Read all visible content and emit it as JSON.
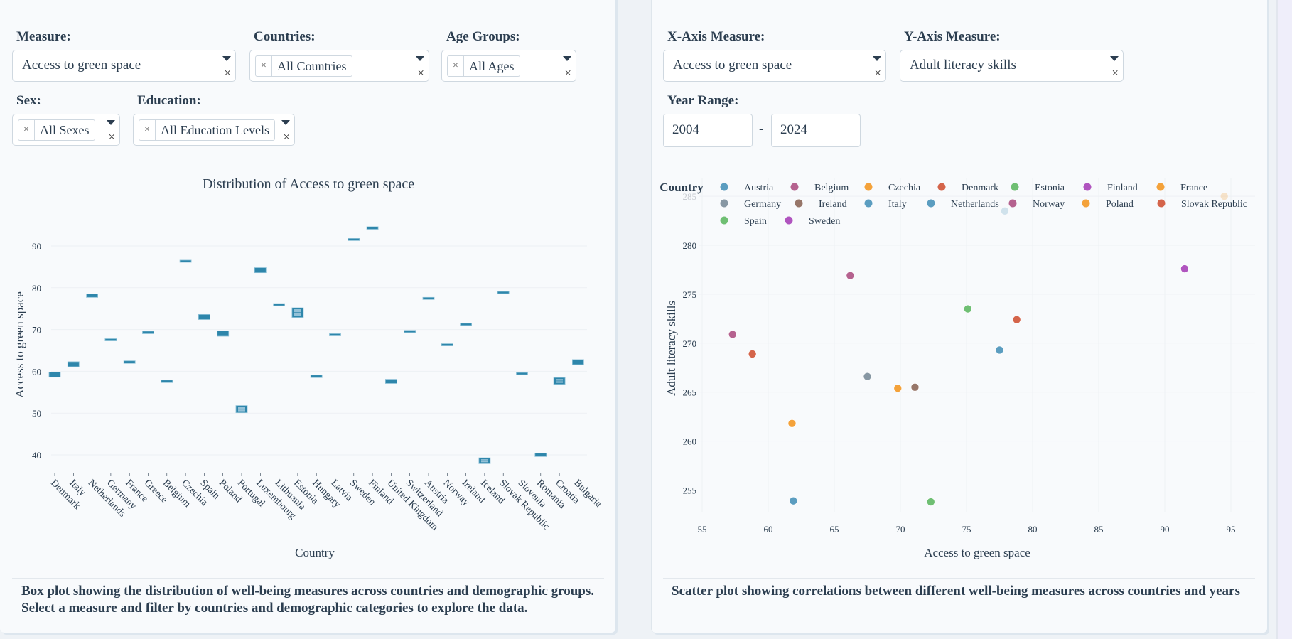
{
  "left": {
    "filters": {
      "measure": {
        "label": "Measure:",
        "value": "Access to green space"
      },
      "countries": {
        "label": "Countries:",
        "chip": "All Countries"
      },
      "age_groups": {
        "label": "Age Groups:",
        "chip": "All Ages"
      },
      "sex": {
        "label": "Sex:",
        "chip": "All Sexes"
      },
      "education": {
        "label": "Education:",
        "chip": "All Education Levels"
      }
    },
    "caption": "Box plot showing the distribution of well-being measures across countries and demographic groups. Select a measure and filter by countries and demographic categories to explore the data."
  },
  "right": {
    "filters": {
      "x_measure": {
        "label": "X-Axis Measure:",
        "value": "Access to green space"
      },
      "y_measure": {
        "label": "Y-Axis Measure:",
        "value": "Adult literacy skills"
      },
      "year_range": {
        "label": "Year Range:",
        "from": "2004",
        "to": "2024",
        "separator": "-"
      }
    },
    "caption": "Scatter plot showing correlations between different well-being measures across countries and years"
  },
  "icons": {
    "clear": "×",
    "chip_remove": "×"
  },
  "chart_data": [
    {
      "type": "box",
      "title": "Distribution of Access to green space",
      "xlabel": "Country",
      "ylabel": "Access to green space",
      "ylim": [
        34,
        97
      ],
      "yticks": [
        40,
        50,
        60,
        70,
        80,
        90
      ],
      "color": "#2e86ab",
      "categories": [
        "Denmark",
        "Italy",
        "Netherlands",
        "Germany",
        "France",
        "Greece",
        "Belgium",
        "Czechia",
        "Spain",
        "Poland",
        "Portugal",
        "Luxembourg",
        "Lithuania",
        "Estonia",
        "Hungary",
        "Latvia",
        "Sweden",
        "Finland",
        "United Kingdom",
        "Switzerland",
        "Austria",
        "Norway",
        "Ireland",
        "Iceland",
        "Slovak Republic",
        "Slovenia",
        "Romania",
        "Croatia",
        "Bulgaria"
      ],
      "boxes": [
        {
          "low": 58.6,
          "mid": 59.2,
          "high": 59.8
        },
        {
          "low": 61.1,
          "mid": 61.7,
          "high": 62.3
        },
        {
          "low": 77.7,
          "mid": 78.1,
          "high": 78.5
        },
        {
          "low": 67.4,
          "mid": 67.6,
          "high": 67.8
        },
        {
          "low": 61.9,
          "mid": 62.2,
          "high": 62.5
        },
        {
          "low": 69.0,
          "mid": 69.3,
          "high": 69.6
        },
        {
          "low": 57.3,
          "mid": 57.6,
          "high": 57.9
        },
        {
          "low": 86.2,
          "mid": 86.4,
          "high": 86.6
        },
        {
          "low": 72.4,
          "mid": 73.0,
          "high": 73.6
        },
        {
          "low": 68.4,
          "mid": 69.0,
          "high": 69.7
        },
        {
          "low": 50.1,
          "mid": 50.9,
          "high": 51.8
        },
        {
          "low": 83.6,
          "mid": 84.2,
          "high": 84.8
        },
        {
          "low": 75.8,
          "mid": 76.0,
          "high": 76.2
        },
        {
          "low": 72.9,
          "mid": 74.0,
          "high": 75.2
        },
        {
          "low": 58.5,
          "mid": 58.8,
          "high": 59.1
        },
        {
          "low": 68.6,
          "mid": 68.8,
          "high": 69.0
        },
        {
          "low": 91.4,
          "mid": 91.6,
          "high": 91.8
        },
        {
          "low": 94.0,
          "mid": 94.3,
          "high": 94.6
        },
        {
          "low": 57.1,
          "mid": 57.6,
          "high": 58.1
        },
        {
          "low": 69.4,
          "mid": 69.6,
          "high": 69.8
        },
        {
          "low": 77.3,
          "mid": 77.5,
          "high": 77.7
        },
        {
          "low": 66.2,
          "mid": 66.4,
          "high": 66.6
        },
        {
          "low": 71.1,
          "mid": 71.3,
          "high": 71.5
        },
        {
          "low": 37.9,
          "mid": 38.6,
          "high": 39.3
        },
        {
          "low": 78.7,
          "mid": 78.9,
          "high": 79.1
        },
        {
          "low": 59.3,
          "mid": 59.5,
          "high": 59.7
        },
        {
          "low": 39.6,
          "mid": 40.0,
          "high": 40.4
        },
        {
          "low": 56.9,
          "mid": 57.7,
          "high": 58.5
        },
        {
          "low": 61.6,
          "mid": 62.2,
          "high": 62.8
        }
      ]
    },
    {
      "type": "scatter",
      "xlabel": "Access to green space",
      "ylabel": "Adult literacy skills",
      "xlim": [
        52.5,
        96.5
      ],
      "ylim": [
        252.3,
        285.5
      ],
      "xticks": [
        55,
        60,
        65,
        70,
        75,
        80,
        85,
        90,
        95
      ],
      "yticks": [
        255,
        260,
        265,
        270,
        275,
        280,
        285
      ],
      "legend_title": "Country",
      "legend_position": "top",
      "series": [
        {
          "name": "Austria",
          "color": "#5b9dc0",
          "points": [
            [
              61.9,
              253.9
            ]
          ]
        },
        {
          "name": "Belgium",
          "color": "#b5628f",
          "points": [
            [
              57.3,
              270.9
            ]
          ]
        },
        {
          "name": "Czechia",
          "color": "#f4a23a",
          "points": [
            [
              61.8,
              261.8
            ]
          ]
        },
        {
          "name": "Denmark",
          "color": "#d4644a",
          "points": [
            [
              58.8,
              268.9
            ]
          ]
        },
        {
          "name": "Estonia",
          "color": "#6fbf73",
          "points": [
            [
              75.1,
              273.5
            ]
          ]
        },
        {
          "name": "Finland",
          "color": "#b054bf",
          "points": [
            [
              91.5,
              277.6
            ]
          ]
        },
        {
          "name": "France",
          "color": "#f4a23a",
          "points": [
            [
              94.5,
              285.0
            ]
          ]
        },
        {
          "name": "Germany",
          "color": "#8797a3",
          "points": [
            [
              67.5,
              266.6
            ]
          ]
        },
        {
          "name": "Ireland",
          "color": "#977669",
          "points": [
            [
              71.1,
              265.5
            ]
          ]
        },
        {
          "name": "Italy",
          "color": "#5b9dc0",
          "points": [
            [
              77.9,
              283.5
            ]
          ]
        },
        {
          "name": "Netherlands",
          "color": "#5b9dc0",
          "points": [
            [
              77.5,
              269.3
            ]
          ]
        },
        {
          "name": "Norway",
          "color": "#b5628f",
          "points": [
            [
              66.2,
              276.9
            ]
          ]
        },
        {
          "name": "Poland",
          "color": "#f4a23a",
          "points": [
            [
              69.8,
              265.4
            ]
          ]
        },
        {
          "name": "Slovak Republic",
          "color": "#d4644a",
          "points": [
            [
              78.8,
              272.4
            ]
          ]
        },
        {
          "name": "Spain",
          "color": "#6fbf73",
          "points": [
            [
              72.3,
              253.8
            ]
          ]
        },
        {
          "name": "Sweden",
          "color": "#b054bf",
          "points": []
        }
      ]
    }
  ]
}
